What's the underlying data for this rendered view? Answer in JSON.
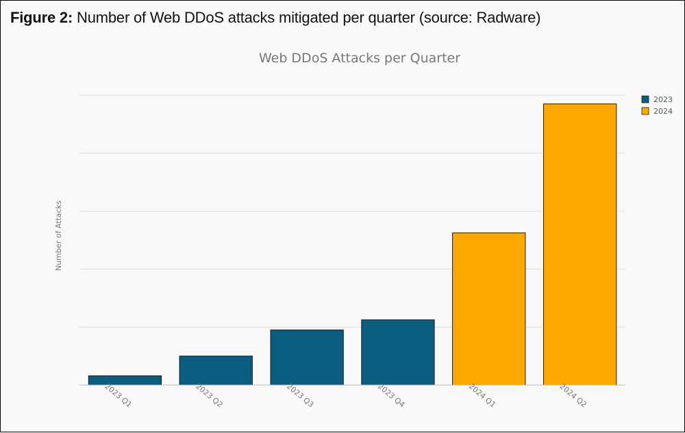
{
  "figure": {
    "lead": "Figure 2:",
    "text": " Number of Web DDoS attacks mitigated per quarter (source: Radware)"
  },
  "chart_data": {
    "type": "bar",
    "title": "Web DDoS Attacks per Quarter",
    "xlabel": "",
    "ylabel": "Number of Attacks",
    "categories": [
      "2023 Q1",
      "2023 Q2",
      "2023 Q3",
      "2023 Q4",
      "2024 Q1",
      "2024 Q2"
    ],
    "values": [
      3.2,
      10,
      19,
      22.5,
      52.5,
      97
    ],
    "bar_series": [
      "2023",
      "2023",
      "2023",
      "2023",
      "2024",
      "2024"
    ],
    "series": [
      {
        "name": "2023",
        "color": "#0b5d7f"
      },
      {
        "name": "2024",
        "color": "#ffa800"
      }
    ],
    "ylim": [
      0,
      100
    ],
    "y_tick_labels_shown": false,
    "grid": true,
    "legend": "top-right"
  }
}
